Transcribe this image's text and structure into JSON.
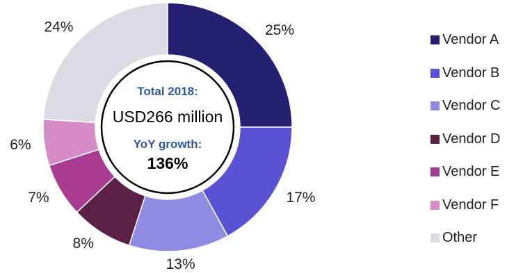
{
  "chart_data": {
    "type": "pie",
    "variant": "donut",
    "categories": [
      "Vendor A",
      "Vendor B",
      "Vendor C",
      "Vendor D",
      "Vendor E",
      "Vendor F",
      "Other"
    ],
    "values": [
      25,
      17,
      13,
      8,
      7,
      6,
      24
    ],
    "labels": [
      "25%",
      "17%",
      "13%",
      "8%",
      "7%",
      "6%",
      "24%"
    ],
    "colors": [
      "#241f70",
      "#5a52d4",
      "#908ae2",
      "#5a2046",
      "#a83c90",
      "#d68cc6",
      "#dcdae2"
    ],
    "legend_position": "right",
    "center": {
      "line1": "Total 2018:",
      "line2": "USD266 million",
      "line3": "YoY growth:",
      "line4": "136%"
    },
    "center_colors": {
      "heading": "#2e58a0",
      "value": "#000000"
    }
  }
}
